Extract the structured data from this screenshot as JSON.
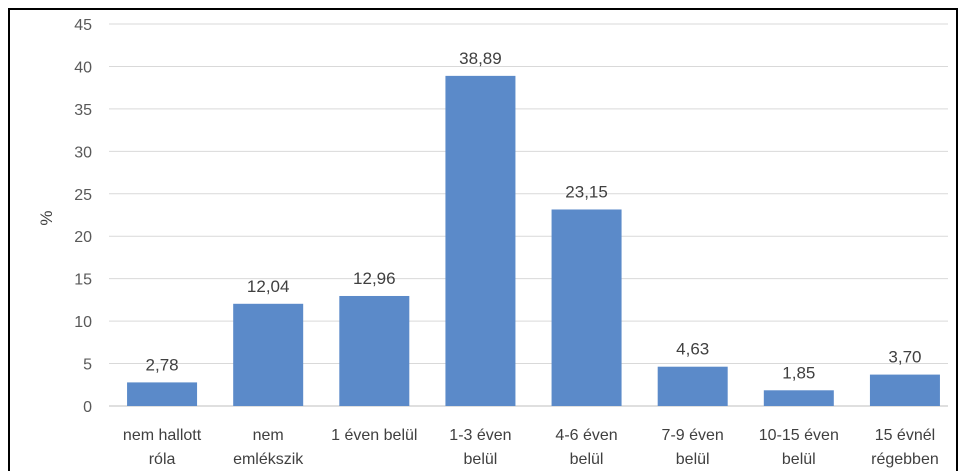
{
  "chart_data": {
    "type": "bar",
    "title": "",
    "xlabel": "",
    "ylabel": "%",
    "ylim": [
      0,
      45
    ],
    "yticks": [
      0,
      5,
      10,
      15,
      20,
      25,
      30,
      35,
      40,
      45
    ],
    "grid": true,
    "legend": "none",
    "bar_color": "#5B8AC9",
    "categories": [
      [
        "nem hallott",
        "róla"
      ],
      [
        "nem",
        "emlékszik"
      ],
      [
        "1 éven belül"
      ],
      [
        "1-3 éven",
        "belül"
      ],
      [
        "4-6 éven",
        "belül"
      ],
      [
        "7-9  éven",
        "belül"
      ],
      [
        "10-15 éven",
        "belül"
      ],
      [
        "15 évnél",
        "régebben"
      ]
    ],
    "values": [
      2.78,
      12.04,
      12.96,
      38.89,
      23.15,
      4.63,
      1.85,
      3.7
    ],
    "data_labels": [
      "2,78",
      "12,04",
      "12,96",
      "38,89",
      "23,15",
      "4,63",
      "1,85",
      "3,70"
    ]
  }
}
